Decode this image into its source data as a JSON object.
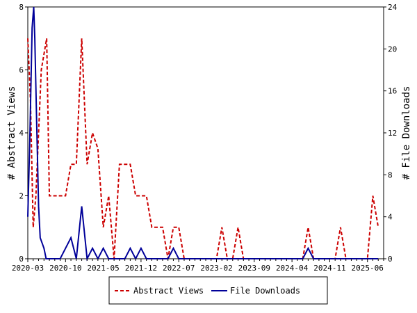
{
  "chart_data": {
    "type": "line",
    "x_tick_labels": [
      "2020-03",
      "2020-10",
      "2021-05",
      "2021-12",
      "2022-07",
      "2023-02",
      "2023-09",
      "2024-04",
      "2024-11",
      "2025-06"
    ],
    "x_range_months": 66,
    "left_axis": {
      "label": "# Abstract Views",
      "ylim": [
        0,
        8
      ],
      "ticks": [
        "0",
        "2",
        "4",
        "6",
        "8"
      ]
    },
    "right_axis": {
      "label": "# File Downloads",
      "ylim": [
        0,
        24
      ],
      "ticks": [
        "0",
        "4",
        "8",
        "12",
        "16",
        "20",
        "24"
      ]
    },
    "grid": false,
    "legend_position": "bottom",
    "series": [
      {
        "name": "Abstract Views",
        "axis": "left",
        "color": "#cc0000",
        "style": "dashed",
        "points": [
          [
            0.0,
            7
          ],
          [
            0.5,
            5
          ],
          [
            1.0,
            1
          ],
          [
            1.5,
            2
          ],
          [
            2.0,
            4
          ],
          [
            2.5,
            6
          ],
          [
            3.0,
            6.5
          ],
          [
            3.5,
            7
          ],
          [
            4.0,
            2
          ],
          [
            5.0,
            2
          ],
          [
            6.0,
            2
          ],
          [
            7.0,
            2
          ],
          [
            8.0,
            3
          ],
          [
            9.0,
            3
          ],
          [
            10.0,
            7
          ],
          [
            11.0,
            3
          ],
          [
            12.0,
            4
          ],
          [
            13.0,
            3.5
          ],
          [
            14.0,
            1
          ],
          [
            15.0,
            2
          ],
          [
            16.0,
            0
          ],
          [
            17.0,
            3
          ],
          [
            18.0,
            3
          ],
          [
            19.0,
            3
          ],
          [
            20.0,
            2
          ],
          [
            21.0,
            2
          ],
          [
            22.0,
            2
          ],
          [
            23.0,
            1
          ],
          [
            24.0,
            1
          ],
          [
            25.0,
            1
          ],
          [
            26.0,
            0
          ],
          [
            27.0,
            1
          ],
          [
            28.0,
            1
          ],
          [
            29.0,
            0
          ],
          [
            30.0,
            0
          ],
          [
            31.0,
            0
          ],
          [
            32.0,
            0
          ],
          [
            33.0,
            0
          ],
          [
            34.0,
            0
          ],
          [
            35.0,
            0
          ],
          [
            36.0,
            1
          ],
          [
            37.0,
            0
          ],
          [
            38.0,
            0
          ],
          [
            39.0,
            1
          ],
          [
            40.0,
            0
          ],
          [
            41.0,
            0
          ],
          [
            42.0,
            0
          ],
          [
            43.0,
            0
          ],
          [
            44.0,
            0
          ],
          [
            45.0,
            0
          ],
          [
            46.0,
            0
          ],
          [
            47.0,
            0
          ],
          [
            48.0,
            0
          ],
          [
            49.0,
            0
          ],
          [
            50.0,
            0
          ],
          [
            51.0,
            0
          ],
          [
            52.0,
            1
          ],
          [
            53.0,
            0
          ],
          [
            54.0,
            0
          ],
          [
            55.0,
            0
          ],
          [
            56.0,
            0
          ],
          [
            57.0,
            0
          ],
          [
            58.0,
            1
          ],
          [
            59.0,
            0
          ],
          [
            60.0,
            0
          ],
          [
            61.0,
            0
          ],
          [
            62.0,
            0
          ],
          [
            63.0,
            0
          ],
          [
            64.0,
            2
          ],
          [
            65.0,
            1
          ]
        ]
      },
      {
        "name": "File Downloads",
        "axis": "right",
        "color": "#000099",
        "style": "solid",
        "points": [
          [
            0.0,
            4
          ],
          [
            0.4,
            12
          ],
          [
            0.8,
            22
          ],
          [
            1.1,
            24
          ],
          [
            1.3,
            21
          ],
          [
            1.6,
            14
          ],
          [
            2.0,
            5
          ],
          [
            2.3,
            2
          ],
          [
            3.0,
            1
          ],
          [
            3.4,
            0
          ],
          [
            4.0,
            0
          ],
          [
            5.0,
            0
          ],
          [
            6.0,
            0
          ],
          [
            7.0,
            1
          ],
          [
            8.0,
            2
          ],
          [
            9.0,
            0
          ],
          [
            10.0,
            5
          ],
          [
            11.0,
            0
          ],
          [
            12.0,
            1
          ],
          [
            13.0,
            0
          ],
          [
            14.0,
            1
          ],
          [
            15.0,
            0
          ],
          [
            16.0,
            0
          ],
          [
            17.0,
            0
          ],
          [
            18.0,
            0
          ],
          [
            19.0,
            1
          ],
          [
            20.0,
            0
          ],
          [
            21.0,
            1
          ],
          [
            22.0,
            0
          ],
          [
            23.0,
            0
          ],
          [
            24.0,
            0
          ],
          [
            25.0,
            0
          ],
          [
            26.0,
            0
          ],
          [
            27.0,
            1
          ],
          [
            28.0,
            0
          ],
          [
            29.0,
            0
          ],
          [
            30.0,
            0
          ],
          [
            35.0,
            0
          ],
          [
            40.0,
            0
          ],
          [
            45.0,
            0
          ],
          [
            50.0,
            0
          ],
          [
            51.0,
            0
          ],
          [
            52.0,
            1
          ],
          [
            53.0,
            0
          ],
          [
            55.0,
            0
          ],
          [
            60.0,
            0
          ],
          [
            65.0,
            0
          ]
        ]
      }
    ]
  }
}
